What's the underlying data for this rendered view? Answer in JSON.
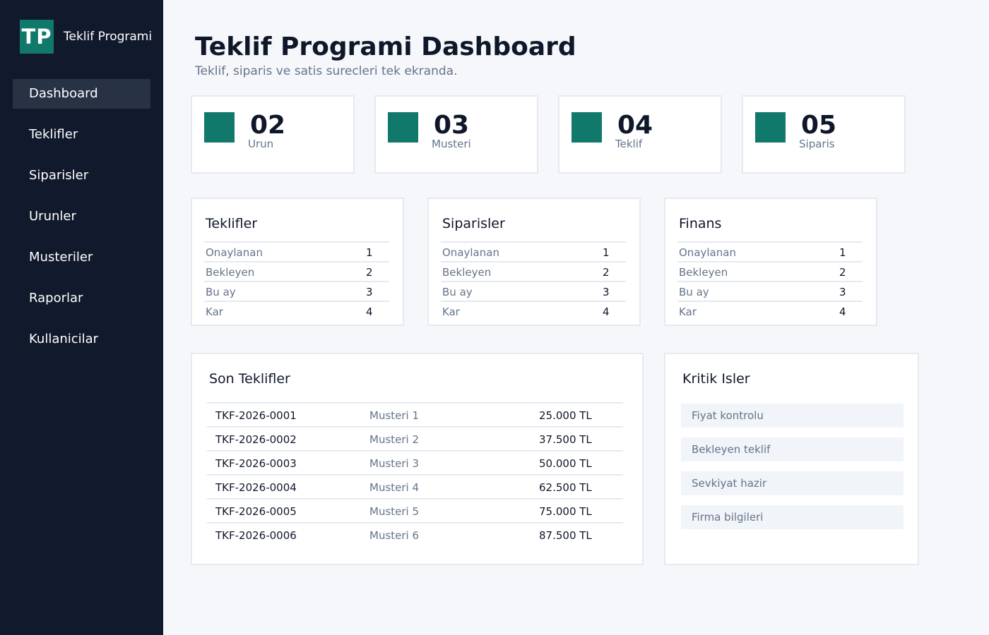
{
  "brand": {
    "logo": "TP",
    "name": "Teklif Programi"
  },
  "nav": {
    "items": [
      {
        "label": "Dashboard",
        "active": true
      },
      {
        "label": "Teklifler"
      },
      {
        "label": "Siparisler"
      },
      {
        "label": "Urunler"
      },
      {
        "label": "Musteriler"
      },
      {
        "label": "Raporlar"
      },
      {
        "label": "Kullanicilar"
      }
    ]
  },
  "header": {
    "title": "Teklif Programi Dashboard",
    "subtitle": "Teklif, siparis ve satis surecleri tek ekranda."
  },
  "stats": [
    {
      "value": "02",
      "label": "Urun"
    },
    {
      "value": "03",
      "label": "Musteri"
    },
    {
      "value": "04",
      "label": "Teklif"
    },
    {
      "value": "05",
      "label": "Siparis"
    }
  ],
  "panels": [
    {
      "title": "Teklifler",
      "rows": [
        {
          "label": "Onaylanan",
          "value": "1"
        },
        {
          "label": "Bekleyen",
          "value": "2"
        },
        {
          "label": "Bu ay",
          "value": "3"
        },
        {
          "label": "Kar",
          "value": "4"
        }
      ]
    },
    {
      "title": "Siparisler",
      "rows": [
        {
          "label": "Onaylanan",
          "value": "1"
        },
        {
          "label": "Bekleyen",
          "value": "2"
        },
        {
          "label": "Bu ay",
          "value": "3"
        },
        {
          "label": "Kar",
          "value": "4"
        }
      ]
    },
    {
      "title": "Finans",
      "rows": [
        {
          "label": "Onaylanan",
          "value": "1"
        },
        {
          "label": "Bekleyen",
          "value": "2"
        },
        {
          "label": "Bu ay",
          "value": "3"
        },
        {
          "label": "Kar",
          "value": "4"
        }
      ]
    }
  ],
  "recent": {
    "title": "Son Teklifler",
    "rows": [
      {
        "code": "TKF-2026-0001",
        "customer": "Musteri 1",
        "amount": "25.000 TL"
      },
      {
        "code": "TKF-2026-0002",
        "customer": "Musteri 2",
        "amount": "37.500 TL"
      },
      {
        "code": "TKF-2026-0003",
        "customer": "Musteri 3",
        "amount": "50.000 TL"
      },
      {
        "code": "TKF-2026-0004",
        "customer": "Musteri 4",
        "amount": "62.500 TL"
      },
      {
        "code": "TKF-2026-0005",
        "customer": "Musteri 5",
        "amount": "75.000 TL"
      },
      {
        "code": "TKF-2026-0006",
        "customer": "Musteri 6",
        "amount": "87.500 TL"
      }
    ]
  },
  "critical": {
    "title": "Kritik Isler",
    "items": [
      {
        "label": "Fiyat kontrolu"
      },
      {
        "label": "Bekleyen teklif"
      },
      {
        "label": "Sevkiyat hazir"
      },
      {
        "label": "Firma bilgileri"
      }
    ]
  },
  "colors": {
    "sidebar_bg": "#111a2c",
    "nav_active_bg": "#283245",
    "accent": "#11786c",
    "page_bg": "#f6f7fa",
    "card_border": "#e5e9f0",
    "muted_text": "#64748b"
  }
}
